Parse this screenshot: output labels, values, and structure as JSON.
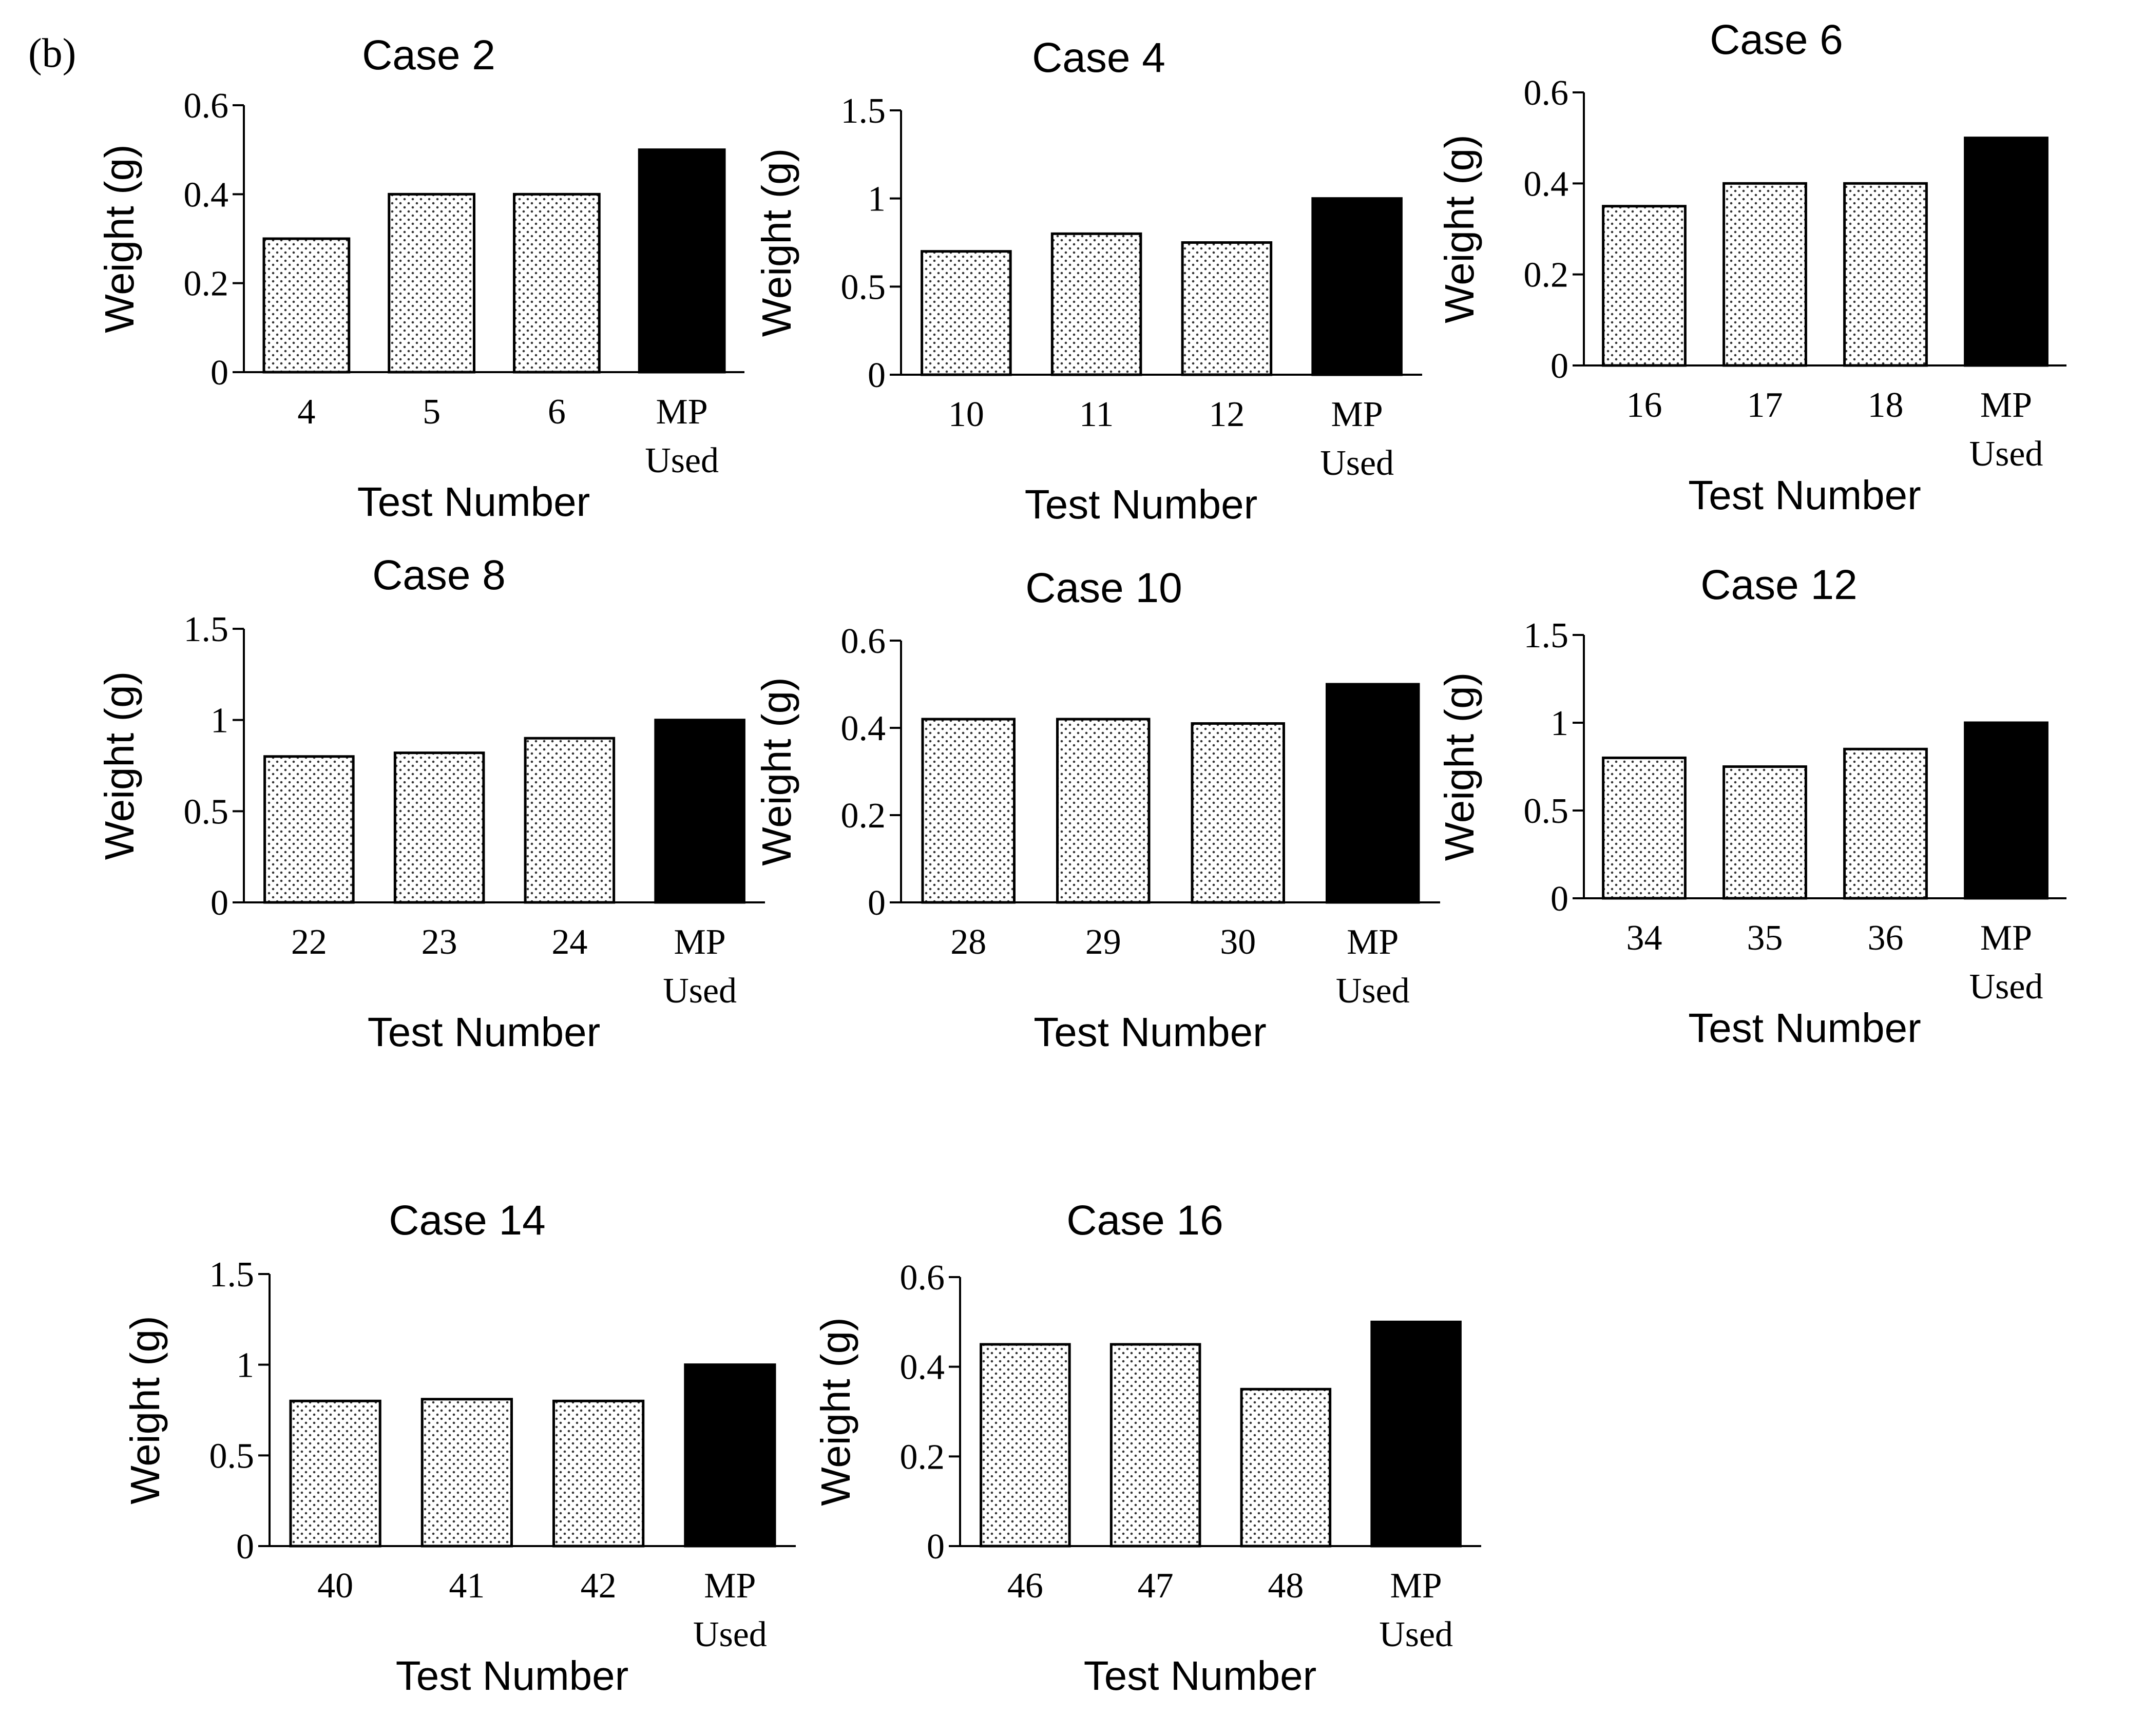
{
  "panel_label": "(b)",
  "colors": {
    "measured_fill_pattern": "dotted",
    "mp_used_fill": "#000000",
    "axis": "#000000"
  },
  "chart_data": [
    {
      "type": "bar",
      "title": "Case 2",
      "ylabel": "Weight (g)",
      "xlabel": "Test Number",
      "categories": [
        "4",
        "5",
        "6",
        "MP Used"
      ],
      "values": [
        0.3,
        0.4,
        0.4,
        0.5
      ],
      "yticks": [
        "0",
        "0.2",
        "0.4",
        "0.6"
      ],
      "ylim": [
        0,
        0.6
      ],
      "grid": false
    },
    {
      "type": "bar",
      "title": "Case 4",
      "ylabel": "Weight (g)",
      "xlabel": "Test Number",
      "categories": [
        "10",
        "11",
        "12",
        "MP Used"
      ],
      "values": [
        0.7,
        0.8,
        0.75,
        1.0
      ],
      "yticks": [
        "0",
        "0.5",
        "1",
        "1.5"
      ],
      "ylim": [
        0,
        1.5
      ],
      "grid": false
    },
    {
      "type": "bar",
      "title": "Case 6",
      "ylabel": "Weight (g)",
      "xlabel": "Test Number",
      "categories": [
        "16",
        "17",
        "18",
        "MP Used"
      ],
      "values": [
        0.35,
        0.4,
        0.4,
        0.5
      ],
      "yticks": [
        "0",
        "0.2",
        "0.4",
        "0.6"
      ],
      "ylim": [
        0,
        0.6
      ],
      "grid": false
    },
    {
      "type": "bar",
      "title": "Case 8",
      "ylabel": "Weight (g)",
      "xlabel": "Test Number",
      "categories": [
        "22",
        "23",
        "24",
        "MP Used"
      ],
      "values": [
        0.8,
        0.82,
        0.9,
        1.0
      ],
      "yticks": [
        "0",
        "0.5",
        "1",
        "1.5"
      ],
      "ylim": [
        0,
        1.5
      ],
      "grid": false
    },
    {
      "type": "bar",
      "title": "Case 10",
      "ylabel": "Weight (g)",
      "xlabel": "Test Number",
      "categories": [
        "28",
        "29",
        "30",
        "MP Used"
      ],
      "values": [
        0.42,
        0.42,
        0.41,
        0.5
      ],
      "yticks": [
        "0",
        "0.2",
        "0.4",
        "0.6"
      ],
      "ylim": [
        0,
        0.6
      ],
      "grid": false
    },
    {
      "type": "bar",
      "title": "Case 12",
      "ylabel": "Weight (g)",
      "xlabel": "Test Number",
      "categories": [
        "34",
        "35",
        "36",
        "MP Used"
      ],
      "values": [
        0.8,
        0.75,
        0.85,
        1.0
      ],
      "yticks": [
        "0",
        "0.5",
        "1",
        "1.5"
      ],
      "ylim": [
        0,
        1.5
      ],
      "grid": false
    },
    {
      "type": "bar",
      "title": "Case 14",
      "ylabel": "Weight (g)",
      "xlabel": "Test Number",
      "categories": [
        "40",
        "41",
        "42",
        "MP Used"
      ],
      "values": [
        0.8,
        0.81,
        0.8,
        1.0
      ],
      "yticks": [
        "0",
        "0.5",
        "1",
        "1.5"
      ],
      "ylim": [
        0,
        1.5
      ],
      "grid": false
    },
    {
      "type": "bar",
      "title": "Case 16",
      "ylabel": "Weight (g)",
      "xlabel": "Test Number",
      "categories": [
        "46",
        "47",
        "48",
        "MP Used"
      ],
      "values": [
        0.45,
        0.45,
        0.35,
        0.5
      ],
      "yticks": [
        "0",
        "0.2",
        "0.4",
        "0.6"
      ],
      "ylim": [
        0,
        0.6
      ],
      "grid": false
    }
  ]
}
